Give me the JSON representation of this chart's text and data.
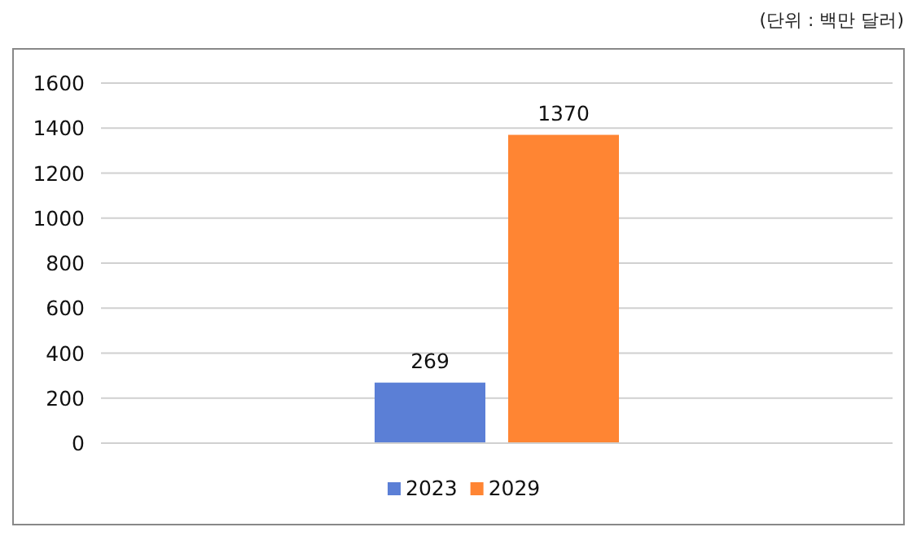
{
  "chart_data": {
    "type": "bar",
    "categories": [
      null
    ],
    "series": [
      {
        "name": "2023",
        "color": "#5b7fd6",
        "values": [
          269
        ]
      },
      {
        "name": "2029",
        "color": "#ff8533",
        "values": [
          1370
        ]
      }
    ],
    "ylim": [
      0,
      1600
    ],
    "yticks": [
      0,
      200,
      400,
      600,
      800,
      1000,
      1200,
      1400,
      1600
    ],
    "grid": "y",
    "legend": "bottom",
    "data_labels": true,
    "annotations": [
      "(단위 : 백만 달러)"
    ]
  }
}
